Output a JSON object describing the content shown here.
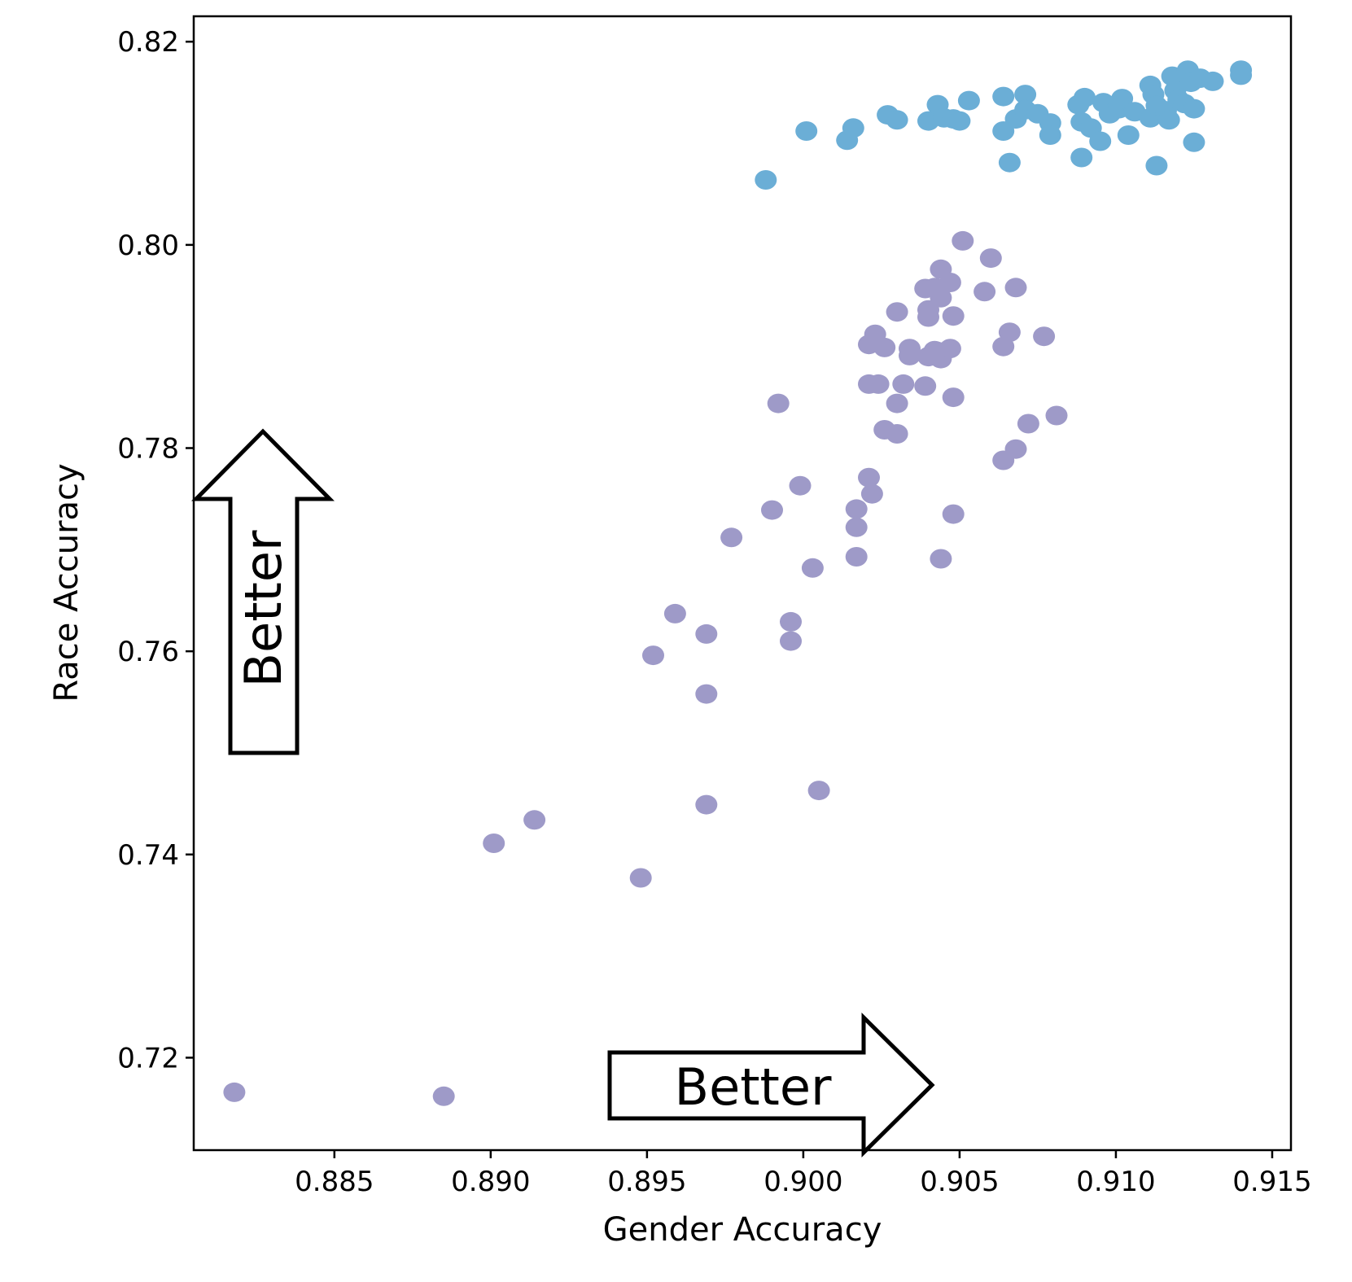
{
  "chart_data": {
    "type": "scatter",
    "xlabel": "Gender Accuracy",
    "ylabel": "Race Accuracy",
    "xlim": [
      0.8805,
      0.9156
    ],
    "ylim": [
      0.7109,
      0.8225
    ],
    "xticks": [
      "0.885",
      "0.890",
      "0.895",
      "0.900",
      "0.905",
      "0.910",
      "0.915"
    ],
    "yticks": [
      "0.72",
      "0.74",
      "0.76",
      "0.78",
      "0.80",
      "0.82"
    ],
    "grid": false,
    "annotations": [
      {
        "text": "Better",
        "direction": "up"
      },
      {
        "text": "Better",
        "direction": "right"
      }
    ],
    "series": [
      {
        "color": "#6baed6",
        "points": [
          [
            0.8988,
            0.8064
          ],
          [
            0.9001,
            0.8112
          ],
          [
            0.9014,
            0.8103
          ],
          [
            0.9016,
            0.8115
          ],
          [
            0.9027,
            0.8128
          ],
          [
            0.903,
            0.8123
          ],
          [
            0.904,
            0.8122
          ],
          [
            0.9043,
            0.8138
          ],
          [
            0.9045,
            0.8125
          ],
          [
            0.9048,
            0.8124
          ],
          [
            0.905,
            0.8122
          ],
          [
            0.9053,
            0.8142
          ],
          [
            0.9064,
            0.8146
          ],
          [
            0.9064,
            0.8112
          ],
          [
            0.9066,
            0.8081
          ],
          [
            0.9068,
            0.8124
          ],
          [
            0.9071,
            0.8148
          ],
          [
            0.9071,
            0.8133
          ],
          [
            0.9075,
            0.8129
          ],
          [
            0.9079,
            0.812
          ],
          [
            0.9079,
            0.8108
          ],
          [
            0.9088,
            0.8138
          ],
          [
            0.9089,
            0.8121
          ],
          [
            0.9089,
            0.8086
          ],
          [
            0.909,
            0.8145
          ],
          [
            0.9092,
            0.8115
          ],
          [
            0.9095,
            0.8102
          ],
          [
            0.9096,
            0.814
          ],
          [
            0.9098,
            0.8129
          ],
          [
            0.9101,
            0.8134
          ],
          [
            0.9102,
            0.8144
          ],
          [
            0.9104,
            0.8108
          ],
          [
            0.9106,
            0.8131
          ],
          [
            0.9111,
            0.8125
          ],
          [
            0.9111,
            0.8157
          ],
          [
            0.9112,
            0.8148
          ],
          [
            0.9113,
            0.8137
          ],
          [
            0.9113,
            0.8078
          ],
          [
            0.9116,
            0.8132
          ],
          [
            0.9117,
            0.8123
          ],
          [
            0.9118,
            0.8166
          ],
          [
            0.9119,
            0.8152
          ],
          [
            0.912,
            0.8143
          ],
          [
            0.9122,
            0.8139
          ],
          [
            0.9123,
            0.8172
          ],
          [
            0.9124,
            0.816
          ],
          [
            0.9125,
            0.8134
          ],
          [
            0.9125,
            0.8101
          ],
          [
            0.9127,
            0.8164
          ],
          [
            0.9131,
            0.8161
          ],
          [
            0.914,
            0.8172
          ],
          [
            0.914,
            0.8167
          ]
        ]
      },
      {
        "color": "#9e9ac8",
        "points": [
          [
            0.8818,
            0.7166
          ],
          [
            0.8885,
            0.7162
          ],
          [
            0.8901,
            0.7411
          ],
          [
            0.8914,
            0.7434
          ],
          [
            0.8948,
            0.7377
          ],
          [
            0.8952,
            0.7596
          ],
          [
            0.8959,
            0.7637
          ],
          [
            0.8969,
            0.7617
          ],
          [
            0.8969,
            0.7558
          ],
          [
            0.8969,
            0.7449
          ],
          [
            0.8977,
            0.7712
          ],
          [
            0.899,
            0.7739
          ],
          [
            0.8992,
            0.7844
          ],
          [
            0.8996,
            0.7629
          ],
          [
            0.8996,
            0.761
          ],
          [
            0.8999,
            0.7763
          ],
          [
            0.9003,
            0.7682
          ],
          [
            0.9005,
            0.7463
          ],
          [
            0.9017,
            0.774
          ],
          [
            0.9017,
            0.7722
          ],
          [
            0.9017,
            0.7693
          ],
          [
            0.9021,
            0.7771
          ],
          [
            0.9022,
            0.7755
          ],
          [
            0.9021,
            0.7902
          ],
          [
            0.9021,
            0.7863
          ],
          [
            0.9023,
            0.7912
          ],
          [
            0.9024,
            0.7863
          ],
          [
            0.9026,
            0.7899
          ],
          [
            0.9026,
            0.7818
          ],
          [
            0.903,
            0.7934
          ],
          [
            0.903,
            0.7844
          ],
          [
            0.903,
            0.7814
          ],
          [
            0.9032,
            0.7863
          ],
          [
            0.9034,
            0.7898
          ],
          [
            0.9034,
            0.7891
          ],
          [
            0.9039,
            0.7957
          ],
          [
            0.9039,
            0.7861
          ],
          [
            0.904,
            0.7936
          ],
          [
            0.904,
            0.7929
          ],
          [
            0.904,
            0.789
          ],
          [
            0.9042,
            0.7958
          ],
          [
            0.9042,
            0.7896
          ],
          [
            0.9043,
            0.7895
          ],
          [
            0.9044,
            0.7976
          ],
          [
            0.9044,
            0.7948
          ],
          [
            0.9044,
            0.7888
          ],
          [
            0.9044,
            0.7691
          ],
          [
            0.9047,
            0.7963
          ],
          [
            0.9047,
            0.7898
          ],
          [
            0.9048,
            0.793
          ],
          [
            0.9048,
            0.785
          ],
          [
            0.9048,
            0.7735
          ],
          [
            0.9051,
            0.8004
          ],
          [
            0.9058,
            0.7954
          ],
          [
            0.906,
            0.7987
          ],
          [
            0.9064,
            0.79
          ],
          [
            0.9064,
            0.7788
          ],
          [
            0.9066,
            0.7914
          ],
          [
            0.9068,
            0.7958
          ],
          [
            0.9068,
            0.7799
          ],
          [
            0.9072,
            0.7824
          ],
          [
            0.9077,
            0.791
          ],
          [
            0.9081,
            0.7832
          ]
        ]
      }
    ]
  }
}
